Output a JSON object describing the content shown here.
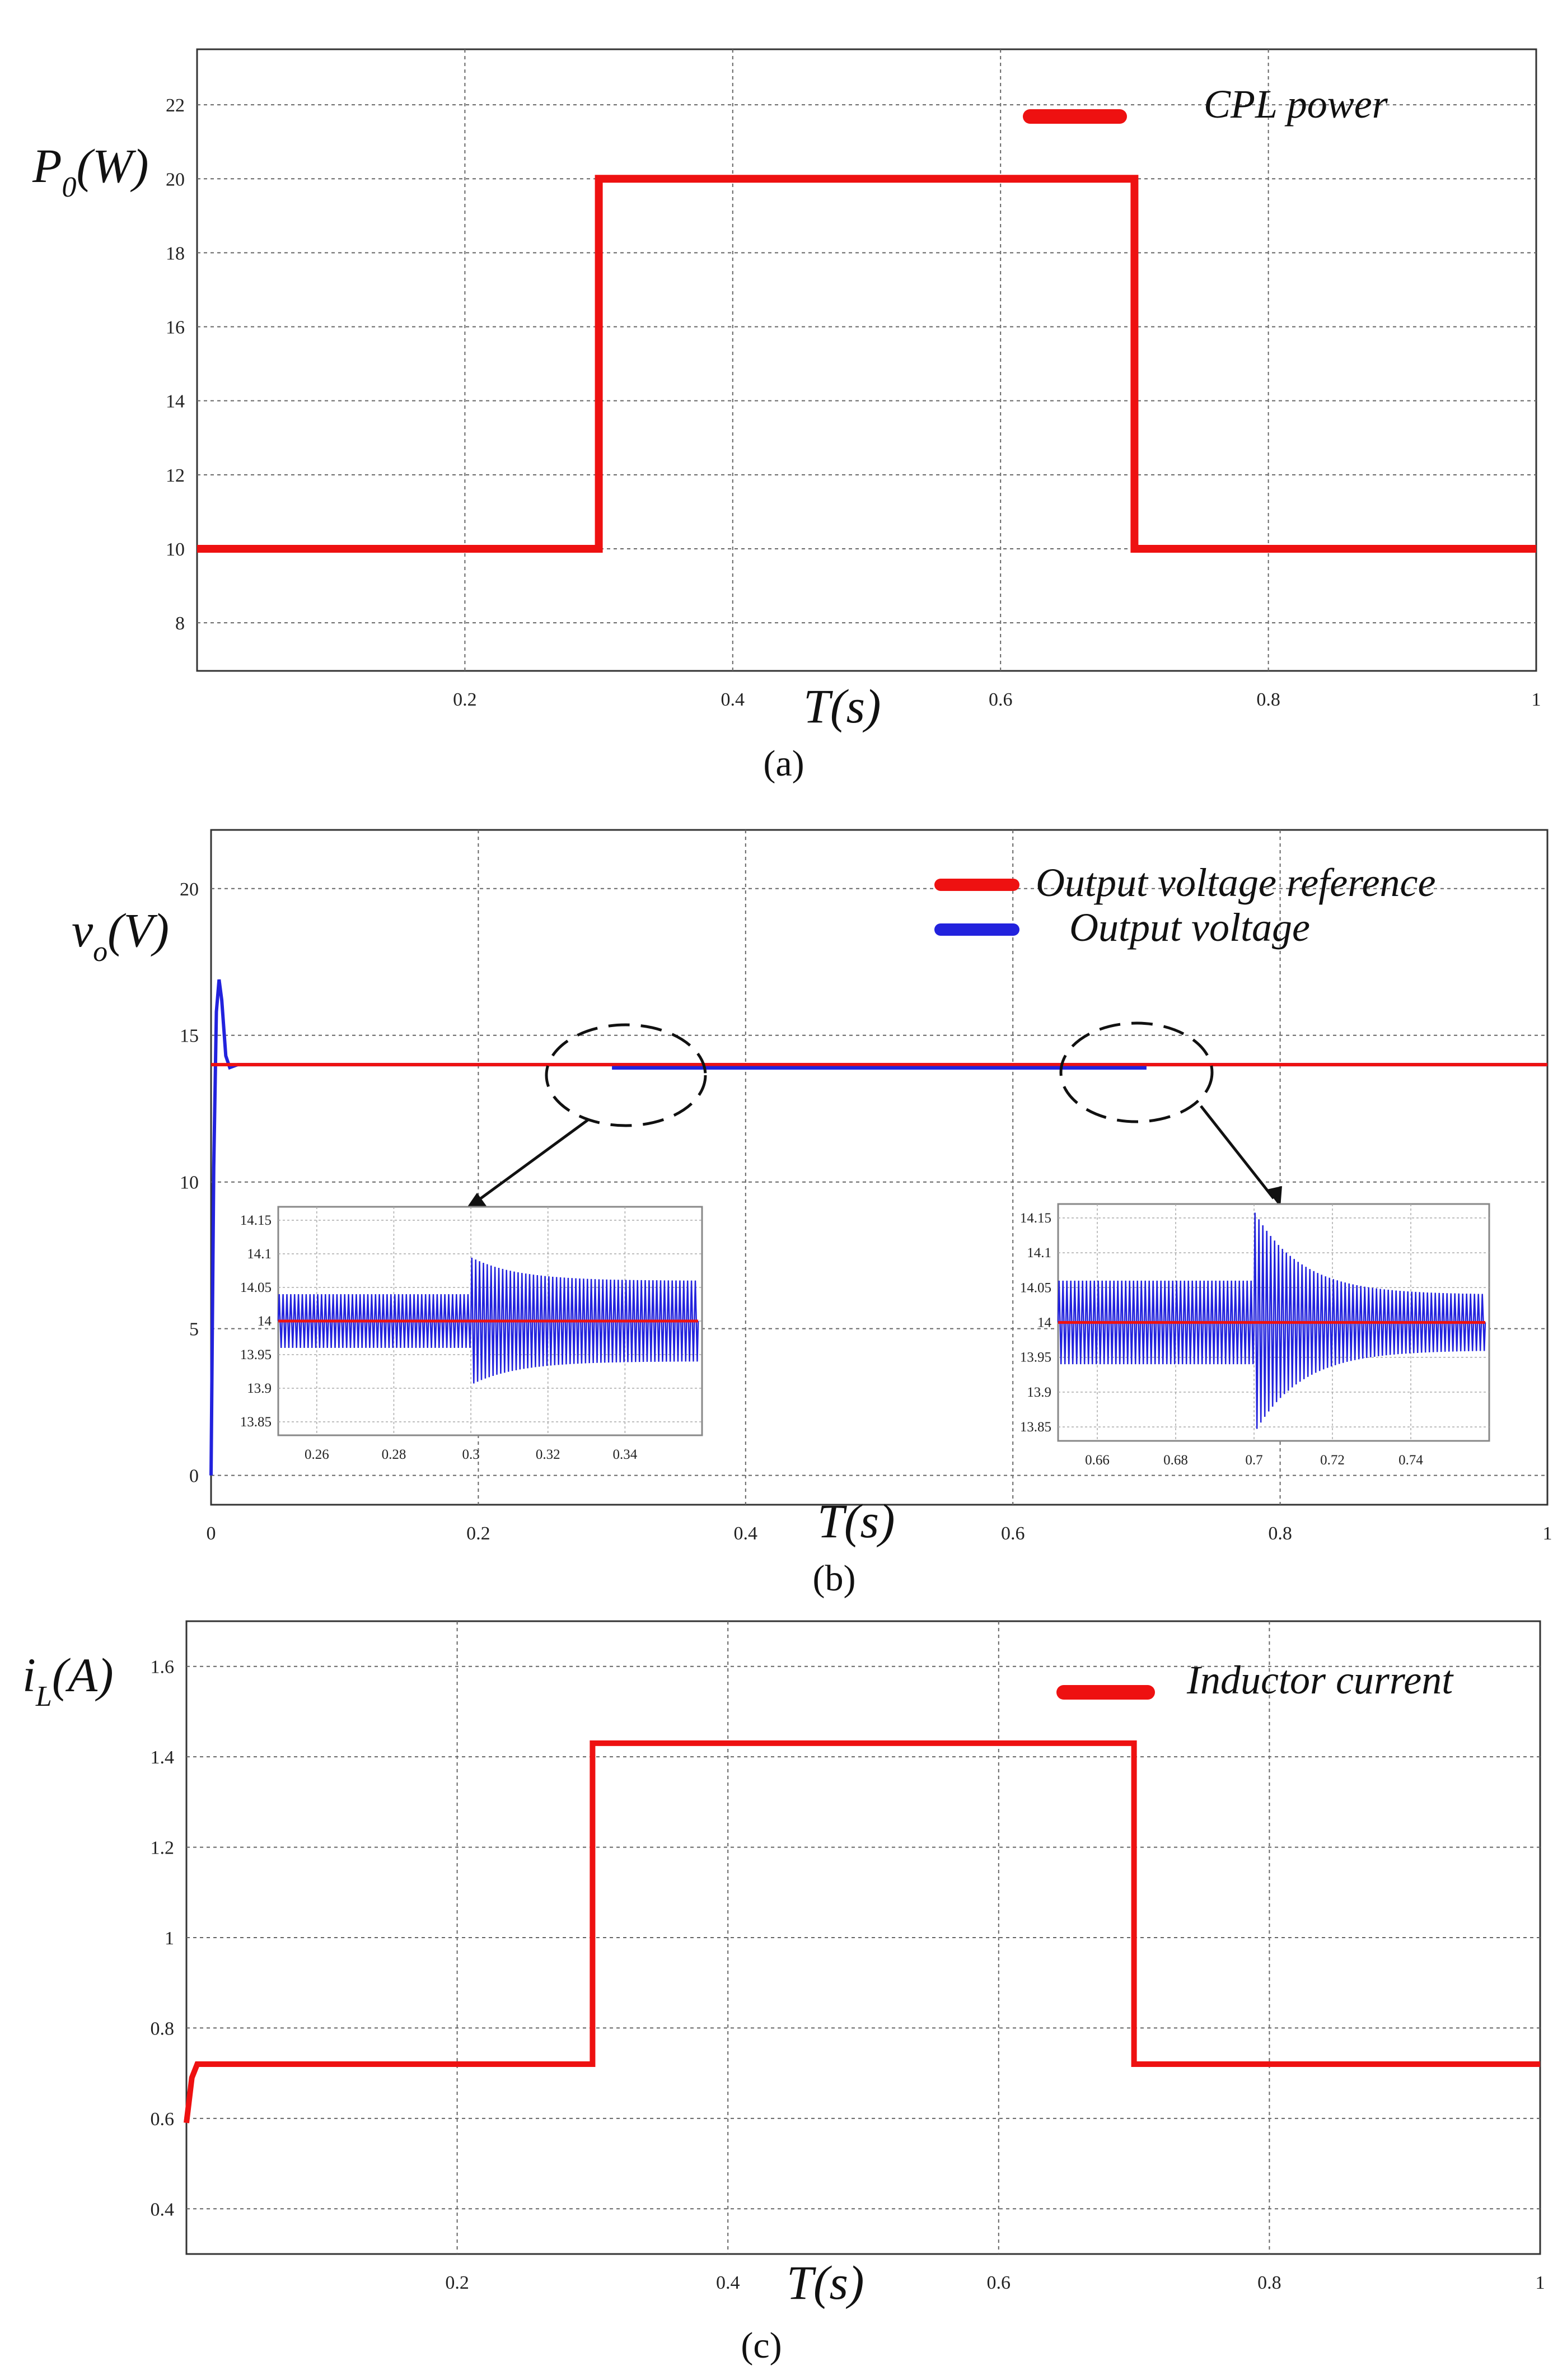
{
  "colors": {
    "red": "#ee1111",
    "blue": "#2222dd",
    "grid": "#666666",
    "frame": "#333333"
  },
  "chart_data": [
    {
      "type": "line",
      "caption": "(a)",
      "ylabel": "P0(W)",
      "ylabel_main": "P",
      "ylabel_sub": "0",
      "ylabel_rest": "(W)",
      "xlabel": "T(s)",
      "xlim": [
        0,
        1
      ],
      "ylim": [
        6.7,
        23.5
      ],
      "xticks": [
        "0.2",
        "0.4",
        "0.6",
        "0.8",
        "1"
      ],
      "yticks": [
        "8",
        "10",
        "12",
        "14",
        "16",
        "18",
        "20",
        "22"
      ],
      "legend": [
        "CPL power"
      ],
      "series": [
        {
          "name": "CPL power",
          "color": "#ee1111",
          "x": [
            0,
            0.3,
            0.3,
            0.7,
            0.7,
            1
          ],
          "y": [
            10,
            10,
            20,
            20,
            10,
            10
          ]
        }
      ]
    },
    {
      "type": "line",
      "caption": "(b)",
      "ylabel": "vo(V)",
      "ylabel_main": "v",
      "ylabel_sub": "o",
      "ylabel_rest": "(V)",
      "xlabel": "T(s)",
      "xlim": [
        0,
        1
      ],
      "ylim": [
        -1,
        22
      ],
      "xticks": [
        "0",
        "0.2",
        "0.4",
        "0.6",
        "0.8",
        "1"
      ],
      "yticks": [
        "0",
        "5",
        "10",
        "15",
        "20"
      ],
      "legend": [
        "Output voltage reference",
        "Output voltage"
      ],
      "series": [
        {
          "name": "Output voltage reference",
          "color": "#ee1111",
          "x": [
            0,
            0.004,
            1
          ],
          "y": [
            14,
            14,
            14
          ]
        },
        {
          "name": "Output voltage",
          "color": "#2222dd",
          "x": [
            0,
            0.002,
            0.004,
            0.006,
            0.008,
            0.011,
            0.014,
            0.02,
            1
          ],
          "y": [
            0,
            10.5,
            15.8,
            16.9,
            16.2,
            14.3,
            13.9,
            14,
            14
          ]
        }
      ],
      "insets": [
        {
          "xlim": [
            0.25,
            0.36
          ],
          "ylim": [
            13.83,
            14.17
          ],
          "xticks": [
            "0.26",
            "0.28",
            "0.3",
            "0.32",
            "0.34"
          ],
          "yticks": [
            "13.85",
            "13.9",
            "13.95",
            "14",
            "14.05",
            "14.1",
            "14.15"
          ],
          "reference": 14,
          "step_time": 0.3,
          "amplitude_before": 0.04,
          "peak_after": 0.095,
          "amplitude_after": 0.06
        },
        {
          "xlim": [
            0.65,
            0.76
          ],
          "ylim": [
            13.83,
            14.17
          ],
          "xticks": [
            "0.66",
            "0.68",
            "0.7",
            "0.72",
            "0.74"
          ],
          "yticks": [
            "13.85",
            "13.9",
            "13.95",
            "14",
            "14.05",
            "14.1",
            "14.15"
          ],
          "reference": 14,
          "step_time": 0.7,
          "amplitude_before": 0.06,
          "peak_after": 0.16,
          "amplitude_after": 0.04
        }
      ]
    },
    {
      "type": "line",
      "caption": "(c)",
      "ylabel": "iL(A)",
      "ylabel_main": "i",
      "ylabel_sub": "L",
      "ylabel_rest": "(A)",
      "xlabel": "T(s)",
      "xlim": [
        0,
        1
      ],
      "ylim": [
        0.3,
        1.7
      ],
      "xticks": [
        "0.2",
        "0.4",
        "0.6",
        "0.8",
        "1"
      ],
      "yticks": [
        "0.4",
        "0.6",
        "0.8",
        "1",
        "1.2",
        "1.4",
        "1.6"
      ],
      "legend": [
        "Inductor current"
      ],
      "series": [
        {
          "name": "Inductor current",
          "color": "#ee1111",
          "x": [
            0,
            0.004,
            0.008,
            0.3,
            0.3,
            0.7,
            0.7,
            1
          ],
          "y": [
            0.59,
            0.69,
            0.72,
            0.72,
            1.43,
            1.43,
            0.72,
            0.72
          ]
        }
      ]
    }
  ]
}
